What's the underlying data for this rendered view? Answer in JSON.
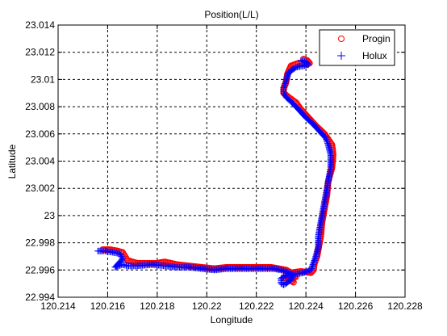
{
  "chart_data": {
    "type": "scatter",
    "title": "Position(L/L)",
    "xlabel": "Longitude",
    "ylabel": "Latitude",
    "xlim": [
      120.214,
      120.228
    ],
    "ylim": [
      22.994,
      23.014
    ],
    "xticks": [
      "120.214",
      "120.216",
      "120.218",
      "120.22",
      "120.222",
      "120.224",
      "120.226",
      "120.228"
    ],
    "yticks": [
      "22.994",
      "22.996",
      "22.998",
      "23",
      "23.002",
      "23.004",
      "23.006",
      "23.008",
      "23.01",
      "23.012",
      "23.014"
    ],
    "grid": true,
    "legend_position": "top-right",
    "series": [
      {
        "name": "Progin",
        "marker": "circle",
        "color": "#ff0000",
        "x": [
          120.2239,
          120.22405,
          120.22415,
          120.22405,
          120.2237,
          120.2234,
          120.22325,
          120.2232,
          120.2231,
          120.2231,
          120.2233,
          120.2236,
          120.2238,
          120.2241,
          120.2244,
          120.22475,
          120.2249,
          120.22505,
          120.2251,
          120.22505,
          120.2249,
          120.22485,
          120.22475,
          120.22465,
          120.2246,
          120.2245,
          120.22445,
          120.22435,
          120.2243,
          120.2242,
          120.2238,
          120.2234,
          120.2232,
          120.2229,
          120.2226,
          120.2223,
          120.2218,
          120.2213,
          120.2208,
          120.2203,
          120.2198,
          120.2193,
          120.2188,
          120.2183,
          120.218,
          120.2177,
          120.2172,
          120.2168,
          120.2167,
          120.2166,
          120.2164,
          120.2161,
          120.2158,
          120.2233,
          120.2235,
          120.2232,
          120.2236,
          120.2231
        ],
        "y": [
          23.0115,
          23.0114,
          23.0112,
          23.0111,
          23.0112,
          23.011,
          23.0104,
          23.0098,
          23.0093,
          23.009,
          23.0087,
          23.0083,
          23.0078,
          23.0072,
          23.0066,
          23.006,
          23.0056,
          23.0052,
          23.0045,
          23.0035,
          23.0025,
          23.0015,
          23.0005,
          22.9995,
          22.9985,
          22.9975,
          22.997,
          22.9965,
          22.996,
          22.9958,
          22.9959,
          22.9958,
          22.996,
          22.9961,
          22.9962,
          22.9962,
          22.9962,
          22.9962,
          22.9962,
          22.9961,
          22.9962,
          22.9963,
          22.9964,
          22.9966,
          22.9965,
          22.9965,
          22.9965,
          22.9967,
          22.997,
          22.9973,
          22.9974,
          22.9975,
          22.9975,
          22.9953,
          22.9951,
          22.9956,
          22.9955,
          22.9954
        ]
      },
      {
        "name": "Holux",
        "marker": "plus",
        "color": "#0000ff",
        "x": [
          120.2238,
          120.224,
          120.2241,
          120.2239,
          120.2236,
          120.2233,
          120.2232,
          120.2231,
          120.2231,
          120.2232,
          120.2235,
          120.2237,
          120.224,
          120.2243,
          120.2246,
          120.2248,
          120.2249,
          120.225,
          120.225,
          120.2249,
          120.2248,
          120.2247,
          120.2246,
          120.2245,
          120.2245,
          120.2244,
          120.2243,
          120.2242,
          120.2239,
          120.2236,
          120.2232,
          120.223,
          120.223,
          120.2231,
          120.2232,
          120.2234,
          120.2235,
          120.2233,
          120.223,
          120.2227,
          120.2223,
          120.2218,
          120.2213,
          120.2208,
          120.2203,
          120.2198,
          120.2193,
          120.2188,
          120.2183,
          120.2178,
          120.2172,
          120.2168,
          120.2166,
          120.2163,
          120.2166,
          120.2165,
          120.2162,
          120.2159,
          120.2156
        ],
        "y": [
          23.0114,
          23.0113,
          23.0111,
          23.011,
          23.0109,
          23.0105,
          23.0099,
          23.0094,
          23.009,
          23.0087,
          23.0082,
          23.0078,
          23.0072,
          23.0067,
          23.0061,
          23.0057,
          23.0052,
          23.0045,
          23.0035,
          23.0025,
          23.0015,
          23.0005,
          22.9995,
          22.9985,
          22.9977,
          22.997,
          22.9965,
          22.996,
          22.9958,
          22.9957,
          22.9956,
          22.9954,
          22.995,
          22.9949,
          22.995,
          22.9953,
          22.9956,
          22.9958,
          22.996,
          22.9961,
          22.9961,
          22.9961,
          22.9961,
          22.9961,
          22.996,
          22.9961,
          22.9962,
          22.9962,
          22.9963,
          22.9964,
          22.9963,
          22.9963,
          22.9964,
          22.9962,
          22.9968,
          22.9972,
          22.9973,
          22.9974,
          22.9974
        ]
      }
    ]
  }
}
